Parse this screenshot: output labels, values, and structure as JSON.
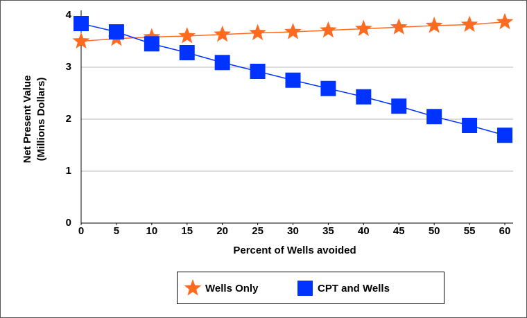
{
  "chart_data": {
    "type": "line",
    "x_label": "Percent of Wells avoided",
    "y_label": [
      "Net Present Value",
      "(Millions Dollars)"
    ],
    "x": [
      0,
      5,
      10,
      15,
      20,
      25,
      30,
      35,
      40,
      45,
      50,
      55,
      60
    ],
    "series": [
      {
        "name": "Wells Only",
        "color": "#ff6a21",
        "marker": "star",
        "values": [
          3.5,
          3.55,
          3.58,
          3.6,
          3.63,
          3.66,
          3.68,
          3.71,
          3.74,
          3.77,
          3.8,
          3.82,
          3.87
        ]
      },
      {
        "name": "CPT and Wells",
        "color": "#0033ff",
        "marker": "square",
        "values": [
          3.84,
          3.68,
          3.45,
          3.28,
          3.09,
          2.92,
          2.75,
          2.59,
          2.43,
          2.25,
          2.05,
          1.88,
          1.69
        ]
      }
    ],
    "xlim": [
      0,
      60
    ],
    "xticks": [
      0,
      5,
      10,
      15,
      20,
      25,
      30,
      35,
      40,
      45,
      50,
      55,
      60
    ],
    "ylim": [
      0,
      4
    ],
    "yticks": [
      0,
      1,
      2,
      3,
      4
    ],
    "grid": true,
    "legend": "bottom"
  }
}
